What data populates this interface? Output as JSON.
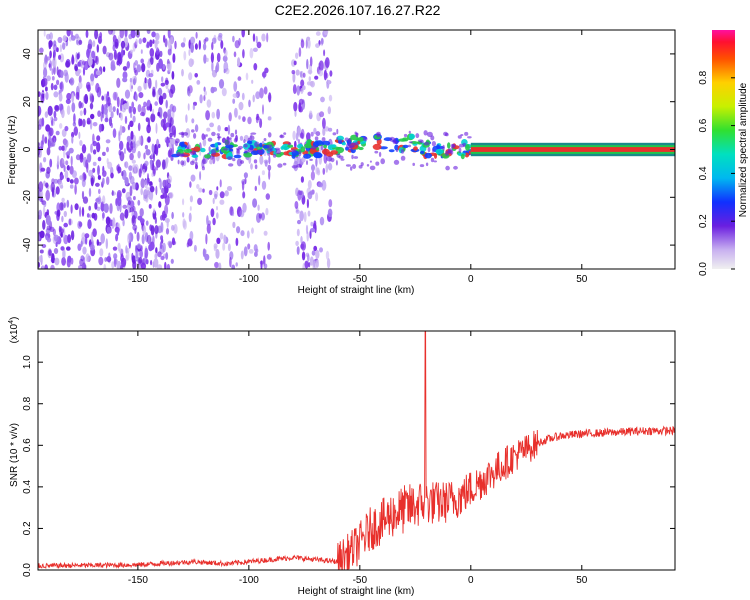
{
  "title": "C2E2.2026.107.16.27.R22",
  "colors": {
    "signal_line": "#e8302c",
    "band_core": "#e8302c",
    "band_edge": "#22c84a",
    "noise_dense": "#6a1fe0",
    "noise_light": "#c9b3f2"
  },
  "chart_data": [
    {
      "type": "heatmap",
      "xlabel": "Height of straight line (km)",
      "ylabel": "Frequency (Hz)",
      "xlim": [
        -195,
        92
      ],
      "ylim": [
        -50,
        50
      ],
      "xticks": [
        -150,
        -100,
        -50,
        0,
        50
      ],
      "xtick_labels": [
        "-150",
        "-100",
        "-50",
        "0",
        "50"
      ],
      "yticks": [
        -40,
        -20,
        0,
        20,
        40
      ],
      "ytick_labels": [
        "-40",
        "-20",
        "0",
        "20",
        "40"
      ],
      "description_of_content": "Broadband noise speckle below -133 km with scattered bands near -120 to -90 km and -80 to -65 km; narrow signal centred near 0 Hz from about -133 km onwards, a solid red line from 0 km to 92 km.",
      "noise_regions_km": [
        [
          -195,
          -133
        ],
        [
          -130,
          -90
        ],
        [
          -80,
          -63
        ]
      ],
      "signal_band_hz": [
        -3,
        3
      ],
      "solid_signal_start_km": 0,
      "colorbar": {
        "label": "Normalized spectral amplitude",
        "range": [
          0,
          1
        ],
        "ticks": [
          0.0,
          0.2,
          0.4,
          0.6,
          0.8
        ],
        "tick_labels": [
          "0.0",
          "0.2",
          "0.4",
          "0.6",
          "0.8"
        ]
      }
    },
    {
      "type": "line",
      "xlabel": "Height of straight line (km)",
      "ylabel": "SNR (10 * v/v)",
      "yscale_note": "(x10",
      "yscale_exponent": "4",
      "xlim": [
        -195,
        92
      ],
      "ylim": [
        0,
        1.15
      ],
      "xticks": [
        -150,
        -100,
        -50,
        0,
        50
      ],
      "xtick_labels": [
        "-150",
        "-100",
        "-50",
        "0",
        "50"
      ],
      "yticks": [
        0.0,
        0.2,
        0.4,
        0.6,
        0.8,
        1.0
      ],
      "ytick_labels": [
        "0.0",
        "0.2",
        "0.4",
        "0.6",
        "0.8",
        "1.0"
      ],
      "series": [
        {
          "name": "SNR",
          "anchors_x": [
            -195,
            -150,
            -125,
            -110,
            -100,
            -80,
            -70,
            -60,
            -55,
            -50,
            -45,
            -40,
            -35,
            -30,
            -25,
            -20,
            -15,
            -10,
            -5,
            0,
            5,
            10,
            15,
            20,
            25,
            30,
            35,
            40,
            50,
            60,
            70,
            80,
            92
          ],
          "anchors_y": [
            0.02,
            0.025,
            0.04,
            0.03,
            0.04,
            0.06,
            0.05,
            0.04,
            0.08,
            0.13,
            0.2,
            0.23,
            0.27,
            0.29,
            0.31,
            0.33,
            0.32,
            0.33,
            0.35,
            0.39,
            0.43,
            0.47,
            0.51,
            0.55,
            0.58,
            0.61,
            0.63,
            0.645,
            0.655,
            0.66,
            0.665,
            0.67,
            0.67
          ],
          "spike": {
            "x": -20.5,
            "y": 1.15
          }
        }
      ]
    }
  ]
}
